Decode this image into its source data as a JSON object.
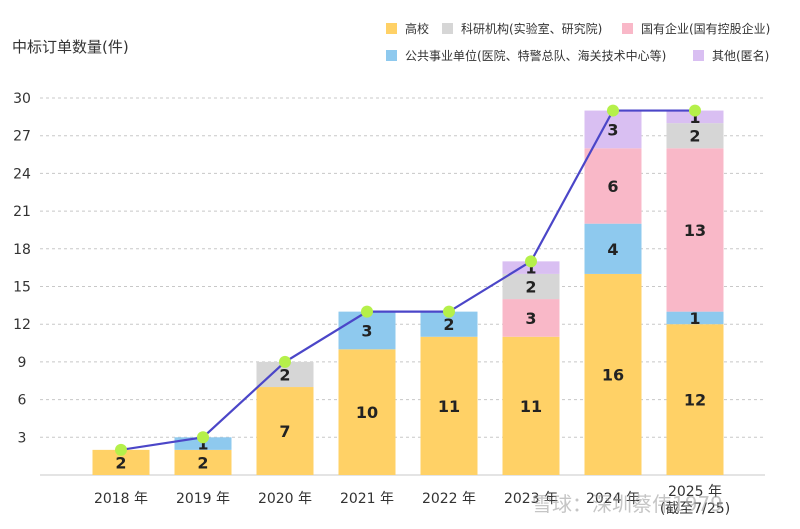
{
  "chart_data": {
    "type": "bar",
    "stacked": true,
    "ylabel": "中标订单数量(件)",
    "ylim": [
      0,
      30
    ],
    "yticks": [
      3,
      6,
      9,
      12,
      15,
      18,
      21,
      24,
      27,
      30
    ],
    "grid": true,
    "legend_position": "top-right",
    "categories": [
      "2018 年",
      "2019 年",
      "2020 年",
      "2021 年",
      "2022 年",
      "2023 年",
      "2024 年",
      "2025 年\n(截至7/25)"
    ],
    "series": [
      {
        "name": "高校",
        "color": "#FFD166",
        "values": [
          2,
          2,
          7,
          10,
          11,
          11,
          16,
          12
        ]
      },
      {
        "name": "公共事业单位(医院、特警总队、海关技术中心等)",
        "color": "#8EC9EE",
        "values": [
          0,
          1,
          0,
          3,
          2,
          0,
          4,
          1
        ]
      },
      {
        "name": "国有企业(国有控股企业)",
        "color": "#F9B8C8",
        "values": [
          0,
          0,
          0,
          0,
          0,
          3,
          6,
          13
        ]
      },
      {
        "name": "科研机构(实验室、研究院)",
        "color": "#D6D6D6",
        "values": [
          0,
          0,
          2,
          0,
          0,
          2,
          0,
          2
        ]
      },
      {
        "name": "其他(匿名)",
        "color": "#D9BFF2",
        "values": [
          0,
          0,
          0,
          0,
          0,
          1,
          3,
          1
        ]
      }
    ],
    "totals_line": {
      "values": [
        2,
        3,
        9,
        13,
        13,
        17,
        29,
        29
      ],
      "line_color": "#4B46C8",
      "marker_color": "#B5F04A"
    }
  },
  "watermark": "雪球：深圳蔡伟1979"
}
